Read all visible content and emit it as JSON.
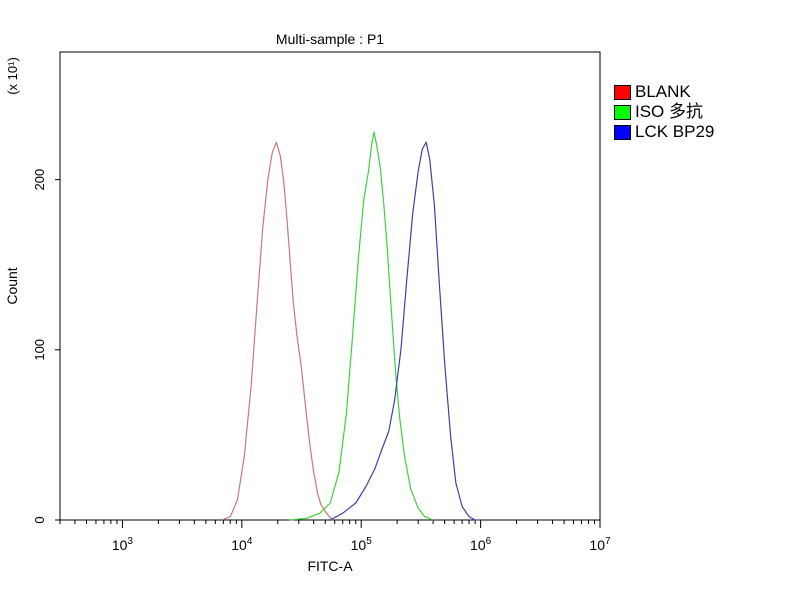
{
  "chart_data": {
    "type": "line",
    "title": "Multi-sample : P1",
    "xlabel": "FITC-A",
    "ylabel": "Count",
    "ylabel_multiplier": "(x 10¹)",
    "x_scale": "log",
    "xlim": [
      300,
      10000000
    ],
    "ylim": [
      0,
      275
    ],
    "x_ticks": [
      {
        "value": 1000,
        "label_base": "10",
        "label_exp": "3"
      },
      {
        "value": 10000,
        "label_base": "10",
        "label_exp": "4"
      },
      {
        "value": 100000,
        "label_base": "10",
        "label_exp": "5"
      },
      {
        "value": 1000000,
        "label_base": "10",
        "label_exp": "6"
      },
      {
        "value": 10000000,
        "label_base": "10",
        "label_exp": "7"
      }
    ],
    "y_ticks": [
      {
        "value": 0,
        "label": "0"
      },
      {
        "value": 100,
        "label": "100"
      },
      {
        "value": 200,
        "label": "200"
      }
    ],
    "legend_position": "right",
    "series": [
      {
        "name": "BLANK",
        "color": "#ff0000",
        "line_color": "#c87878",
        "points": [
          [
            6800,
            0
          ],
          [
            8000,
            2
          ],
          [
            9200,
            12
          ],
          [
            10500,
            38
          ],
          [
            12000,
            80
          ],
          [
            13500,
            130
          ],
          [
            15000,
            172
          ],
          [
            16500,
            200
          ],
          [
            18000,
            216
          ],
          [
            19500,
            222
          ],
          [
            21000,
            214
          ],
          [
            22500,
            198
          ],
          [
            24000,
            175
          ],
          [
            25500,
            150
          ],
          [
            27000,
            128
          ],
          [
            29000,
            108
          ],
          [
            31500,
            90
          ],
          [
            34000,
            68
          ],
          [
            37000,
            45
          ],
          [
            40000,
            28
          ],
          [
            43000,
            16
          ],
          [
            46000,
            9
          ],
          [
            50000,
            5
          ],
          [
            54000,
            2
          ],
          [
            58000,
            0
          ]
        ]
      },
      {
        "name": "ISO 多抗",
        "color": "#00ff00",
        "line_color": "#3fd03f",
        "points": [
          [
            25000,
            0
          ],
          [
            35000,
            1
          ],
          [
            45000,
            4
          ],
          [
            55000,
            10
          ],
          [
            65000,
            28
          ],
          [
            75000,
            62
          ],
          [
            85000,
            110
          ],
          [
            95000,
            155
          ],
          [
            105000,
            188
          ],
          [
            115000,
            205
          ],
          [
            122000,
            220
          ],
          [
            128000,
            228
          ],
          [
            135000,
            220
          ],
          [
            145000,
            206
          ],
          [
            155000,
            185
          ],
          [
            165000,
            160
          ],
          [
            180000,
            120
          ],
          [
            195000,
            85
          ],
          [
            210000,
            60
          ],
          [
            230000,
            38
          ],
          [
            260000,
            18
          ],
          [
            300000,
            7
          ],
          [
            340000,
            2
          ],
          [
            400000,
            0
          ]
        ]
      },
      {
        "name": "LCK BP29",
        "color": "#0000ff",
        "line_color": "#4040a8",
        "points": [
          [
            55000,
            0
          ],
          [
            70000,
            4
          ],
          [
            90000,
            10
          ],
          [
            110000,
            20
          ],
          [
            130000,
            30
          ],
          [
            150000,
            42
          ],
          [
            170000,
            52
          ],
          [
            190000,
            70
          ],
          [
            215000,
            100
          ],
          [
            240000,
            140
          ],
          [
            270000,
            180
          ],
          [
            300000,
            205
          ],
          [
            325000,
            218
          ],
          [
            350000,
            222
          ],
          [
            375000,
            212
          ],
          [
            410000,
            185
          ],
          [
            450000,
            140
          ],
          [
            500000,
            92
          ],
          [
            560000,
            50
          ],
          [
            620000,
            22
          ],
          [
            700000,
            8
          ],
          [
            800000,
            2
          ],
          [
            900000,
            0
          ],
          [
            1000000,
            0
          ]
        ]
      }
    ]
  }
}
